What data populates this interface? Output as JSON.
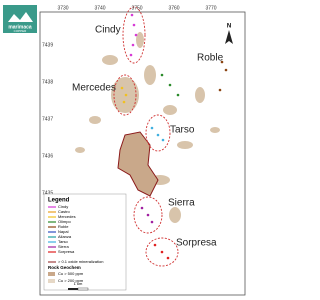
{
  "header": {
    "logo": "marimaca",
    "logo_sub": "COPPER"
  },
  "grid": {
    "x_labels": [
      "3730",
      "3740",
      "3750",
      "3760",
      "3770"
    ],
    "y_labels": [
      "7439",
      "7438",
      "7437",
      "7436",
      "7435"
    ]
  },
  "north": "N",
  "targets": [
    "Cindy",
    "Roble",
    "Mercedes",
    "Tarso",
    "Sierra",
    "Sorpresa"
  ],
  "legend": {
    "title": "Legend",
    "items": [
      {
        "label": "Cindy",
        "color": "#d63ad6"
      },
      {
        "label": "Castro",
        "color": "#e8a020"
      },
      {
        "label": "Mercedes",
        "color": "#f0c020"
      },
      {
        "label": "Olimpo",
        "color": "#2a8a2a"
      },
      {
        "label": "Roble",
        "color": "#8b4513"
      },
      {
        "label": "Napal",
        "color": "#3050c0"
      },
      {
        "label": "Alianza",
        "color": "#20a0a0"
      },
      {
        "label": "Tarso",
        "color": "#40b0e0"
      },
      {
        "label": "Sierra",
        "color": "#a020a0"
      },
      {
        "label": "Sorpresa",
        "color": "#e02020"
      }
    ],
    "oxide": "> 0.1 oxide mineralization",
    "geochem_title": "Rock Geochem",
    "geochem": [
      "Cu > 500 ppm",
      "Cu > 200 ppm"
    ]
  },
  "scale": "1 km"
}
